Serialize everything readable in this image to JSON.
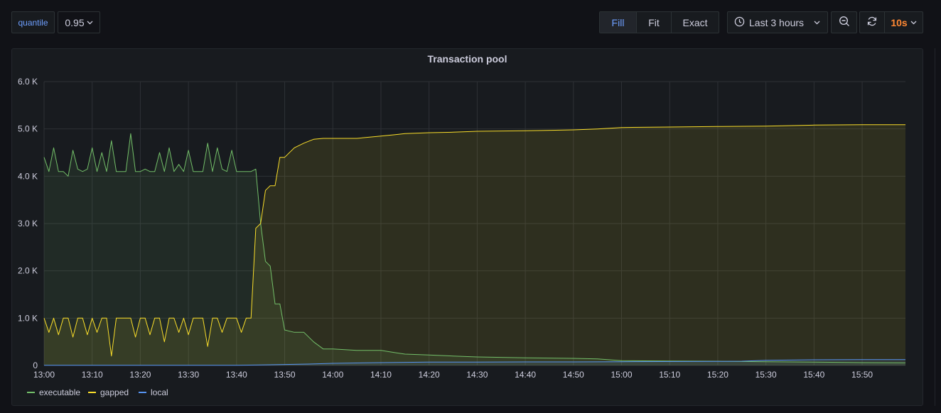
{
  "variable": {
    "label": "quantile",
    "value": "0.95"
  },
  "view_modes": [
    {
      "label": "Fill",
      "active": true
    },
    {
      "label": "Fit",
      "active": false
    },
    {
      "label": "Exact",
      "active": false
    }
  ],
  "time_picker": {
    "label": "Last 3 hours",
    "icon": "clock-icon"
  },
  "zoom": {
    "icon": "zoom-out-icon"
  },
  "refresh": {
    "icon": "refresh-icon",
    "interval": "10s"
  },
  "colors": {
    "executable": "#73bf69",
    "gapped": "#fade2a",
    "local": "#5794f2",
    "accent": "#6e9fff",
    "refresh_interval": "#ff8833"
  },
  "chart_data": {
    "type": "area",
    "title": "Transaction pool",
    "x_ticks": [
      "13:00",
      "13:10",
      "13:20",
      "13:30",
      "13:40",
      "13:50",
      "14:00",
      "14:10",
      "14:20",
      "14:30",
      "14:40",
      "14:50",
      "15:00",
      "15:10",
      "15:20",
      "15:30",
      "15:40",
      "15:50"
    ],
    "y_ticks": [
      "0",
      "1.0 K",
      "2.0 K",
      "3.0 K",
      "4.0 K",
      "5.0 K",
      "6.0 K"
    ],
    "xlim": [
      "13:00",
      "15:59"
    ],
    "ylim": [
      0,
      6000
    ],
    "grid": true,
    "legend_position": "bottom-left",
    "series": [
      {
        "name": "executable",
        "color": "#73bf69",
        "x": [
          "13:00",
          "13:01",
          "13:02",
          "13:03",
          "13:04",
          "13:05",
          "13:06",
          "13:07",
          "13:08",
          "13:09",
          "13:10",
          "13:11",
          "13:12",
          "13:13",
          "13:14",
          "13:15",
          "13:16",
          "13:17",
          "13:18",
          "13:19",
          "13:20",
          "13:21",
          "13:22",
          "13:23",
          "13:24",
          "13:25",
          "13:26",
          "13:27",
          "13:28",
          "13:29",
          "13:30",
          "13:31",
          "13:32",
          "13:33",
          "13:34",
          "13:35",
          "13:36",
          "13:37",
          "13:38",
          "13:39",
          "13:40",
          "13:41",
          "13:42",
          "13:43",
          "13:44",
          "13:45",
          "13:46",
          "13:47",
          "13:48",
          "13:49",
          "13:50",
          "13:52",
          "13:54",
          "13:56",
          "13:58",
          "14:00",
          "14:05",
          "14:10",
          "14:13",
          "14:15",
          "14:20",
          "14:25",
          "14:30",
          "14:40",
          "14:50",
          "14:55",
          "15:00",
          "15:10",
          "15:20",
          "15:30",
          "15:40",
          "15:50",
          "15:59"
        ],
        "values": [
          4400,
          4100,
          4600,
          4100,
          4100,
          4000,
          4550,
          4150,
          4100,
          4150,
          4600,
          4100,
          4500,
          4100,
          4750,
          4100,
          4100,
          4100,
          4900,
          4100,
          4100,
          4150,
          4100,
          4100,
          4500,
          4100,
          4600,
          4100,
          4250,
          4100,
          4550,
          4100,
          4100,
          4100,
          4700,
          4100,
          4600,
          4150,
          4100,
          4550,
          4100,
          4100,
          4100,
          4100,
          4150,
          3000,
          2200,
          2100,
          1300,
          1300,
          750,
          700,
          700,
          500,
          350,
          350,
          320,
          320,
          270,
          240,
          220,
          200,
          180,
          160,
          150,
          140,
          100,
          95,
          90,
          80,
          70,
          60,
          55
        ]
      },
      {
        "name": "gapped",
        "color": "#fade2a",
        "x": [
          "13:00",
          "13:01",
          "13:02",
          "13:03",
          "13:04",
          "13:05",
          "13:06",
          "13:07",
          "13:08",
          "13:09",
          "13:10",
          "13:11",
          "13:12",
          "13:13",
          "13:14",
          "13:15",
          "13:16",
          "13:17",
          "13:18",
          "13:19",
          "13:20",
          "13:21",
          "13:22",
          "13:23",
          "13:24",
          "13:25",
          "13:26",
          "13:27",
          "13:28",
          "13:29",
          "13:30",
          "13:31",
          "13:32",
          "13:33",
          "13:34",
          "13:35",
          "13:36",
          "13:37",
          "13:38",
          "13:39",
          "13:40",
          "13:41",
          "13:42",
          "13:43",
          "13:44",
          "13:45",
          "13:46",
          "13:47",
          "13:48",
          "13:49",
          "13:50",
          "13:52",
          "13:54",
          "13:56",
          "13:58",
          "14:00",
          "14:05",
          "14:10",
          "14:13",
          "14:15",
          "14:20",
          "14:25",
          "14:30",
          "14:40",
          "14:50",
          "14:55",
          "15:00",
          "15:10",
          "15:20",
          "15:30",
          "15:40",
          "15:50",
          "15:59"
        ],
        "values": [
          1000,
          700,
          1000,
          650,
          1000,
          1000,
          600,
          1000,
          1000,
          650,
          1000,
          700,
          1000,
          1000,
          200,
          1000,
          1000,
          1000,
          1000,
          600,
          1000,
          1000,
          650,
          1000,
          1000,
          500,
          1000,
          1000,
          700,
          1000,
          650,
          1000,
          1000,
          1000,
          400,
          1000,
          1000,
          700,
          1000,
          1000,
          1000,
          700,
          1000,
          1000,
          2900,
          3000,
          3700,
          3800,
          3800,
          4400,
          4400,
          4600,
          4700,
          4780,
          4800,
          4800,
          4800,
          4850,
          4880,
          4900,
          4920,
          4930,
          4950,
          4960,
          4980,
          5000,
          5030,
          5040,
          5050,
          5060,
          5080,
          5090,
          5090
        ]
      },
      {
        "name": "local",
        "color": "#5794f2",
        "x": [
          "13:00",
          "13:40",
          "13:45",
          "13:55",
          "14:00",
          "14:10",
          "14:20",
          "14:30",
          "14:40",
          "14:50",
          "15:00",
          "15:20",
          "15:25",
          "15:30",
          "15:40",
          "15:50",
          "15:59"
        ],
        "values": [
          5,
          5,
          10,
          30,
          45,
          60,
          70,
          70,
          75,
          75,
          80,
          85,
          90,
          110,
          120,
          125,
          125
        ]
      }
    ]
  }
}
